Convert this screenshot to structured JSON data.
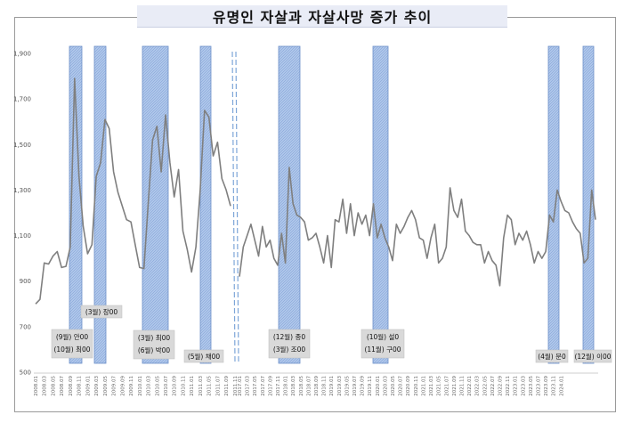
{
  "chart_data": {
    "type": "line",
    "title": "유명인 자살과 자살사망 증가 추이",
    "ylim": [
      500,
      2000
    ],
    "y_ticks": [
      "500",
      "700",
      "900",
      "1,100",
      "1,300",
      "1,500",
      "1,700",
      "1,900"
    ],
    "x_ticks": [
      "2008.01",
      "2008.03",
      "2008.05",
      "2008.07",
      "2008.09",
      "2008.11",
      "2009.01",
      "2009.03",
      "2009.05",
      "2009.07",
      "2009.09",
      "2009.11",
      "2010.01",
      "2010.03",
      "2010.05",
      "2010.07",
      "2010.09",
      "2010.11",
      "2011.01",
      "2011.03",
      "2011.05",
      "2011.07",
      "2011.09",
      "2011.11",
      "2017.01",
      "2017.03",
      "2017.05",
      "2017.07",
      "2017.09",
      "2017.11",
      "2018.01",
      "2018.03",
      "2018.05",
      "2018.07",
      "2018.09",
      "2018.11",
      "2019.01",
      "2019.03",
      "2019.05",
      "2019.07",
      "2019.09",
      "2019.11",
      "2020.01",
      "2020.03",
      "2020.05",
      "2020.07",
      "2020.09",
      "2020.11",
      "2021.01",
      "2021.03",
      "2021.05",
      "2021.07",
      "2021.09",
      "2021.11",
      "2022.01",
      "2022.03",
      "2022.05",
      "2022.07",
      "2022.09",
      "2022.11",
      "2023.01",
      "2023.03",
      "2023.05",
      "2023.07",
      "2023.09",
      "2023.11",
      "2024.01"
    ],
    "grid": false,
    "legend": "none",
    "line_color": "#7f7f7f",
    "highlight_color": "#aec6ea",
    "segment1": {
      "start": "2008.01",
      "values": [
        800,
        820,
        980,
        975,
        1010,
        1030,
        960,
        965,
        1050,
        1790,
        1360,
        1140,
        1020,
        1060,
        1360,
        1420,
        1610,
        1570,
        1380,
        1290,
        1230,
        1170,
        1160,
        1060,
        960,
        955,
        1240,
        1520,
        1580,
        1380,
        1630,
        1420,
        1270,
        1390,
        1120,
        1040,
        940,
        1050,
        1300,
        1650,
        1620,
        1450,
        1510,
        1350,
        1300,
        1230
      ]
    },
    "segment2": {
      "start": "2017.01",
      "values": [
        920,
        1050,
        1100,
        1150,
        1080,
        1010,
        1140,
        1050,
        1080,
        1000,
        970,
        1110,
        980,
        1400,
        1240,
        1190,
        1180,
        1160,
        1080,
        1090,
        1110,
        1050,
        980,
        1100,
        960,
        1170,
        1160,
        1260,
        1110,
        1240,
        1100,
        1200,
        1150,
        1190,
        1100,
        1240,
        1090,
        1150,
        1090,
        1050,
        990,
        1150,
        1110,
        1140,
        1180,
        1210,
        1170,
        1090,
        1080,
        1000,
        1090,
        1150,
        980,
        1000,
        1050,
        1310,
        1210,
        1180,
        1260,
        1120,
        1100,
        1070,
        1060,
        1060,
        980,
        1030,
        990,
        970,
        880,
        1090,
        1190,
        1170,
        1060,
        1110,
        1080,
        1120,
        1060,
        980,
        1030,
        1000,
        1030,
        1190,
        1160,
        1300,
        1250,
        1210,
        1200,
        1160,
        1130,
        1110,
        980,
        1000,
        1300,
        1170
      ]
    },
    "celebrity_events": [
      {
        "labels": [
          "(9월) 안00",
          "(10월) 최00"
        ]
      },
      {
        "labels": [
          "(3월) 장00"
        ]
      },
      {
        "labels": [
          "(3월) 최00",
          "(6월) 박00"
        ]
      },
      {
        "labels": [
          "(5월) 채00"
        ]
      },
      {
        "labels": [
          "(12월) 종0",
          "(3월) 조00"
        ]
      },
      {
        "labels": [
          "(10월) 설0",
          "(11월) 구00"
        ]
      },
      {
        "labels": [
          "(4월) 문0"
        ]
      },
      {
        "labels": [
          "(12월) 이00"
        ]
      }
    ]
  }
}
